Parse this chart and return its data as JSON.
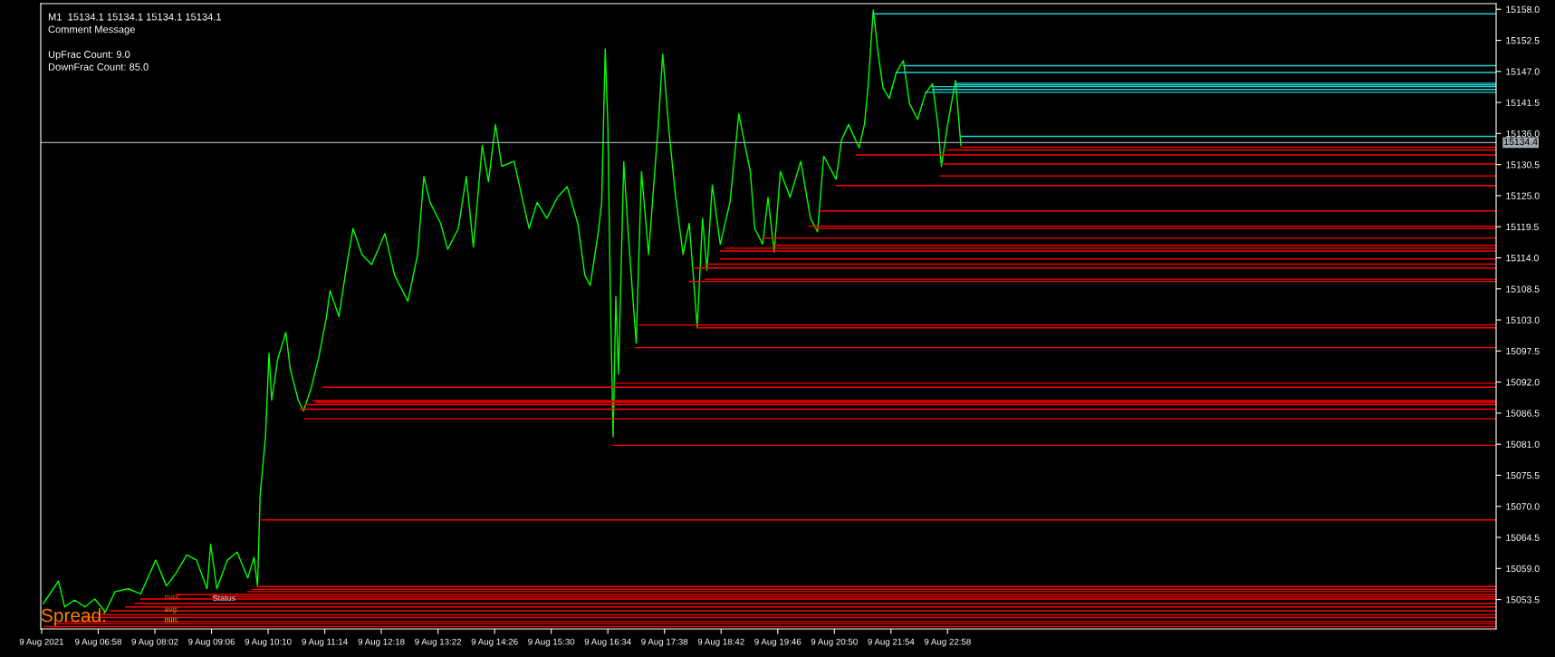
{
  "chart_data": {
    "type": "line",
    "annotations": [
      "M1  15134.1 15134.1 15134.1 15134.1",
      "Comment Message",
      "UpFrac Count: 9.0",
      "DownFrac Count: 85.0",
      "Spread:",
      "max:",
      "avg:",
      "min:",
      "Status"
    ],
    "xlim": [
      "2021-08-09T05:53",
      "2021-08-10T09:18"
    ],
    "ylim": [
      15048.3,
      15159.0
    ],
    "xticks": [
      {
        "value": "2021-08-09T05:54",
        "label": "9 Aug 2021"
      },
      {
        "value": "2021-08-09T06:58",
        "label": "9 Aug 06:58"
      },
      {
        "value": "2021-08-09T08:02",
        "label": "9 Aug 08:02"
      },
      {
        "value": "2021-08-09T09:06",
        "label": "9 Aug 09:06"
      },
      {
        "value": "2021-08-09T10:10",
        "label": "9 Aug 10:10"
      },
      {
        "value": "2021-08-09T11:14",
        "label": "9 Aug 11:14"
      },
      {
        "value": "2021-08-09T12:18",
        "label": "9 Aug 12:18"
      },
      {
        "value": "2021-08-09T13:22",
        "label": "9 Aug 13:22"
      },
      {
        "value": "2021-08-09T14:26",
        "label": "9 Aug 14:26"
      },
      {
        "value": "2021-08-09T15:30",
        "label": "9 Aug 15:30"
      },
      {
        "value": "2021-08-09T16:34",
        "label": "9 Aug 16:34"
      },
      {
        "value": "2021-08-09T17:38",
        "label": "9 Aug 17:38"
      },
      {
        "value": "2021-08-09T18:42",
        "label": "9 Aug 18:42"
      },
      {
        "value": "2021-08-09T19:46",
        "label": "9 Aug 19:46"
      },
      {
        "value": "2021-08-09T20:50",
        "label": "9 Aug 20:50"
      },
      {
        "value": "2021-08-09T21:54",
        "label": "9 Aug 21:54"
      },
      {
        "value": "2021-08-09T22:58",
        "label": "9 Aug 22:58"
      }
    ],
    "yticks": [
      15053.5,
      {
        "value": 15059,
        "label": "15059.0"
      },
      15064.5,
      {
        "value": 15070,
        "label": "15070.0"
      },
      15075.5,
      {
        "value": 15081,
        "label": "15081.0"
      },
      15086.5,
      {
        "value": 15092,
        "label": "15092.0"
      },
      15097.5,
      {
        "value": 15103,
        "label": "15103.0"
      },
      15108.5,
      {
        "value": 15114,
        "label": "15114.0"
      },
      15119.5,
      {
        "value": 15125,
        "label": "15125.0"
      },
      15130.5,
      {
        "value": 15136,
        "label": "15136.0"
      },
      15141.5,
      {
        "value": 15147,
        "label": "15147.0"
      },
      15152.5,
      {
        "value": 15158,
        "label": "15158.0"
      }
    ],
    "grid": false,
    "legend": false,
    "marker": "none",
    "line_style": "solid",
    "ref_lines": [
      {
        "axis": "y",
        "value": 15134.4,
        "label": "15134.4",
        "color": "#a0a8b0"
      }
    ],
    "series": [
      {
        "color": "#00ff00",
        "x": [
          "2021-08-09T05:56",
          "2021-08-09T06:08",
          "2021-08-09T06:13",
          "2021-08-09T06:20",
          "2021-08-09T06:31",
          "2021-08-09T06:43",
          "2021-08-09T06:54",
          "2021-08-09T07:06",
          "2021-08-09T07:17",
          "2021-08-09T07:32",
          "2021-08-09T07:46",
          "2021-08-09T08:03",
          "2021-08-09T08:15",
          "2021-08-09T08:26",
          "2021-08-09T08:38",
          "2021-08-09T08:49",
          "2021-08-09T09:01",
          "2021-08-09T09:05",
          "2021-08-09T09:12",
          "2021-08-09T09:24",
          "2021-08-09T09:35",
          "2021-08-09T09:47",
          "2021-08-09T09:54",
          "2021-08-09T09:58",
          "2021-08-09T10:01",
          "2021-08-09T10:07",
          "2021-08-09T10:11",
          "2021-08-09T10:14",
          "2021-08-09T10:21",
          "2021-08-09T10:30",
          "2021-08-09T10:35",
          "2021-08-09T10:44",
          "2021-08-09T10:50",
          "2021-08-09T10:58",
          "2021-08-09T11:07",
          "2021-08-09T11:16",
          "2021-08-09T11:20",
          "2021-08-09T11:30",
          "2021-08-09T11:39",
          "2021-08-09T11:46",
          "2021-08-09T11:56",
          "2021-08-09T12:07",
          "2021-08-09T12:22",
          "2021-08-09T12:33",
          "2021-08-09T12:48",
          "2021-08-09T12:59",
          "2021-08-09T13:06",
          "2021-08-09T13:13",
          "2021-08-09T13:25",
          "2021-08-09T13:33",
          "2021-08-09T13:45",
          "2021-08-09T13:54",
          "2021-08-09T14:02",
          "2021-08-09T14:12",
          "2021-08-09T14:19",
          "2021-08-09T14:27",
          "2021-08-09T14:34",
          "2021-08-09T14:48",
          "2021-08-09T14:57",
          "2021-08-09T15:05",
          "2021-08-09T15:14",
          "2021-08-09T15:25",
          "2021-08-09T15:37",
          "2021-08-09T15:48",
          "2021-08-09T16:00",
          "2021-08-09T16:08",
          "2021-08-09T16:14",
          "2021-08-09T16:23",
          "2021-08-09T16:27",
          "2021-08-09T16:31",
          "2021-08-09T16:34",
          "2021-08-09T16:37",
          "2021-08-09T16:40",
          "2021-08-09T16:43",
          "2021-08-09T16:46",
          "2021-08-09T16:52",
          "2021-08-09T16:57",
          "2021-08-09T17:06",
          "2021-08-09T17:12",
          "2021-08-09T17:20",
          "2021-08-09T17:31",
          "2021-08-09T17:36",
          "2021-08-09T17:43",
          "2021-08-09T17:50",
          "2021-08-09T17:59",
          "2021-08-09T18:06",
          "2021-08-09T18:15",
          "2021-08-09T18:21",
          "2021-08-09T18:26",
          "2021-08-09T18:32",
          "2021-08-09T18:41",
          "2021-08-09T18:52",
          "2021-08-09T19:02",
          "2021-08-09T19:09",
          "2021-08-09T19:15",
          "2021-08-09T19:20",
          "2021-08-09T19:29",
          "2021-08-09T19:35",
          "2021-08-09T19:42",
          "2021-08-09T19:49",
          "2021-08-09T20:00",
          "2021-08-09T20:12",
          "2021-08-09T20:23",
          "2021-08-09T20:31",
          "2021-08-09T20:38",
          "2021-08-09T20:52",
          "2021-08-09T20:58",
          "2021-08-09T21:06",
          "2021-08-09T21:18",
          "2021-08-09T21:24",
          "2021-08-09T21:28",
          "2021-08-09T21:34",
          "2021-08-09T21:40",
          "2021-08-09T21:45",
          "2021-08-09T21:52",
          "2021-08-09T22:00",
          "2021-08-09T22:08",
          "2021-08-09T22:15",
          "2021-08-09T22:24",
          "2021-08-09T22:33",
          "2021-08-09T22:41",
          "2021-08-09T22:47",
          "2021-08-09T22:51",
          "2021-08-09T22:58",
          "2021-08-09T23:07",
          "2021-08-09T23:13"
        ],
        "values": [
          15052.8,
          15055.6,
          15056.8,
          15052.2,
          15053.4,
          15052.2,
          15053.6,
          15051.3,
          15054.9,
          15055.4,
          15054.5,
          15060.5,
          15055.9,
          15058.2,
          15061.4,
          15060.5,
          15055.4,
          15063.3,
          15055.4,
          15060.5,
          15061.9,
          15057.3,
          15061.0,
          15055.9,
          15072.1,
          15082.3,
          15097.1,
          15088.8,
          15096.2,
          15100.8,
          15094.3,
          15088.8,
          15086.9,
          15090.6,
          15096.2,
          15103.6,
          15108.2,
          15103.6,
          15112.8,
          15119.2,
          15114.6,
          15112.8,
          15118.3,
          15110.9,
          15106.3,
          15114.6,
          15128.4,
          15123.8,
          15120.1,
          15115.5,
          15119.2,
          15128.4,
          15115.9,
          15133.9,
          15127.5,
          15137.6,
          15130.2,
          15131.1,
          15124.7,
          15119.2,
          15123.8,
          15121.0,
          15124.7,
          15126.6,
          15120.1,
          15110.9,
          15109.1,
          15118.3,
          15123.8,
          15151.0,
          15137.6,
          15105.4,
          15082.3,
          15107.2,
          15093.4,
          15131.0,
          15118.3,
          15098.9,
          15129.3,
          15114.6,
          15137.6,
          15150.1,
          15136.7,
          15125.6,
          15114.6,
          15120.1,
          15101.7,
          15121.0,
          15111.8,
          15126.9,
          15116.4,
          15123.8,
          15139.5,
          15133.9,
          15129.3,
          15119.2,
          15116.4,
          15124.7,
          15115.0,
          15129.3,
          15124.7,
          15131.1,
          15121.0,
          15118.6,
          15132.0,
          15127.9,
          15134.8,
          15137.6,
          15133.5,
          15137.6,
          15144.1,
          15157.9,
          15149.6,
          15144.1,
          15142.2,
          15146.8,
          15148.9,
          15141.3,
          15138.5,
          15143.1,
          15144.8,
          15137.6,
          15130.2,
          15137.6,
          15145.4,
          15133.9
        ]
      },
      {
        "color": "#20d0d0",
        "x": [
          "2021-08-09T21:34",
          "2021-08-10T09:18"
        ],
        "values": [
          15157.2,
          15157.2
        ]
      },
      {
        "color": "#20d0d0",
        "x": [
          "2021-08-09T22:08",
          "2021-08-10T09:18"
        ],
        "values": [
          15148.0,
          15148.0
        ]
      },
      {
        "color": "#20d0d0",
        "x": [
          "2021-08-09T22:00",
          "2021-08-10T09:18"
        ],
        "values": [
          15146.8,
          15146.8
        ]
      },
      {
        "color": "#20d0d0",
        "x": [
          "2021-08-09T23:07",
          "2021-08-10T09:18"
        ],
        "values": [
          15144.9,
          15144.9
        ]
      },
      {
        "color": "#20d0d0",
        "x": [
          "2021-08-09T23:07",
          "2021-08-10T09:18"
        ],
        "values": [
          15144.6,
          15144.6
        ]
      },
      {
        "color": "#20d0d0",
        "x": [
          "2021-08-09T22:41",
          "2021-08-10T09:18"
        ],
        "values": [
          15144.3,
          15144.3
        ]
      },
      {
        "color": "#20d0d0",
        "x": [
          "2021-08-09T22:41",
          "2021-08-10T09:18"
        ],
        "values": [
          15143.8,
          15143.8
        ]
      },
      {
        "color": "#20d0d0",
        "x": [
          "2021-08-09T22:33",
          "2021-08-10T09:18"
        ],
        "values": [
          15143.3,
          15143.3
        ]
      },
      {
        "color": "#20d0d0",
        "x": [
          "2021-08-09T23:13",
          "2021-08-10T09:18"
        ],
        "values": [
          15135.5,
          15135.5
        ]
      },
      {
        "color": "#ff0000",
        "x": [
          "2021-08-09T23:13",
          "2021-08-10T09:18"
        ],
        "values": [
          15133.6,
          15133.6
        ]
      },
      {
        "color": "#ff0000",
        "x": [
          "2021-08-09T22:58",
          "2021-08-10T09:18"
        ],
        "values": [
          15133.1,
          15133.1
        ]
      },
      {
        "color": "#ff0000",
        "x": [
          "2021-08-09T21:15",
          "2021-08-10T09:18"
        ],
        "values": [
          15132.2,
          15132.2
        ]
      },
      {
        "color": "#ff0000",
        "x": [
          "2021-08-09T22:54",
          "2021-08-10T09:18"
        ],
        "values": [
          15130.6,
          15130.6
        ]
      },
      {
        "color": "#ff0000",
        "x": [
          "2021-08-09T22:50",
          "2021-08-10T09:18"
        ],
        "values": [
          15128.5,
          15128.5
        ]
      },
      {
        "color": "#ff0000",
        "x": [
          "2021-08-09T20:52",
          "2021-08-10T09:18"
        ],
        "values": [
          15126.8,
          15126.8
        ]
      },
      {
        "color": "#ff0000",
        "x": [
          "2021-08-09T20:35",
          "2021-08-10T09:18"
        ],
        "values": [
          15122.3,
          15122.3
        ]
      },
      {
        "color": "#ff0000",
        "x": [
          "2021-08-09T20:21",
          "2021-08-10T09:18"
        ],
        "values": [
          15119.6,
          15119.6
        ]
      },
      {
        "color": "#ff0000",
        "x": [
          "2021-08-09T20:29",
          "2021-08-10T09:18"
        ],
        "values": [
          15119.2,
          15119.2
        ]
      },
      {
        "color": "#ff0000",
        "x": [
          "2021-08-09T19:29",
          "2021-08-10T09:18"
        ],
        "values": [
          15117.5,
          15117.5
        ]
      },
      {
        "color": "#ff0000",
        "x": [
          "2021-08-09T19:41",
          "2021-08-10T09:18"
        ],
        "values": [
          15116.2,
          15116.2
        ]
      },
      {
        "color": "#ff0000",
        "x": [
          "2021-08-09T18:47",
          "2021-08-10T09:18"
        ],
        "values": [
          15115.7,
          15115.7
        ]
      },
      {
        "color": "#ff0000",
        "x": [
          "2021-08-09T18:41",
          "2021-08-10T09:18"
        ],
        "values": [
          15115.2,
          15115.2
        ]
      },
      {
        "color": "#ff0000",
        "x": [
          "2021-08-09T18:41",
          "2021-08-10T09:18"
        ],
        "values": [
          15113.8,
          15113.8
        ]
      },
      {
        "color": "#ff0000",
        "x": [
          "2021-08-09T18:24",
          "2021-08-10T09:18"
        ],
        "values": [
          15112.9,
          15112.9
        ]
      },
      {
        "color": "#ff0000",
        "x": [
          "2021-08-09T18:12",
          "2021-08-10T09:18"
        ],
        "values": [
          15112.2,
          15112.2
        ]
      },
      {
        "color": "#ff0000",
        "x": [
          "2021-08-09T18:24",
          "2021-08-10T09:18"
        ],
        "values": [
          15110.2,
          15110.2
        ]
      },
      {
        "color": "#ff0000",
        "x": [
          "2021-08-09T18:06",
          "2021-08-10T09:18"
        ],
        "values": [
          15109.8,
          15109.8
        ]
      },
      {
        "color": "#ff0000",
        "x": [
          "2021-08-09T17:09",
          "2021-08-10T09:18"
        ],
        "values": [
          15102.1,
          15102.1
        ]
      },
      {
        "color": "#ff0000",
        "x": [
          "2021-08-09T18:15",
          "2021-08-10T09:18"
        ],
        "values": [
          15101.6,
          15101.6
        ]
      },
      {
        "color": "#ff0000",
        "x": [
          "2021-08-09T17:05",
          "2021-08-10T09:18"
        ],
        "values": [
          15098.1,
          15098.1
        ]
      },
      {
        "color": "#ff0000",
        "x": [
          "2021-08-09T16:43",
          "2021-08-10T09:18"
        ],
        "values": [
          15091.8,
          15091.8
        ]
      },
      {
        "color": "#ff0000",
        "x": [
          "2021-08-09T11:12",
          "2021-08-10T09:18"
        ],
        "values": [
          15091.1,
          15091.1
        ]
      },
      {
        "color": "#ff0000",
        "x": [
          "2021-08-09T11:01",
          "2021-08-10T09:18"
        ],
        "values": [
          15088.7,
          15088.7
        ]
      },
      {
        "color": "#ff0000",
        "x": [
          "2021-08-09T11:04",
          "2021-08-10T09:18"
        ],
        "values": [
          15088.4,
          15088.4
        ]
      },
      {
        "color": "#ff0000",
        "x": [
          "2021-08-09T10:52",
          "2021-08-10T09:18"
        ],
        "values": [
          15088.0,
          15088.0
        ]
      },
      {
        "color": "#ff0000",
        "x": [
          "2021-08-09T10:46",
          "2021-08-10T09:18"
        ],
        "values": [
          15087.2,
          15087.2
        ]
      },
      {
        "color": "#ff0000",
        "x": [
          "2021-08-09T10:51",
          "2021-08-10T09:18"
        ],
        "values": [
          15085.5,
          15085.5
        ]
      },
      {
        "color": "#ff0000",
        "x": [
          "2021-08-09T16:40",
          "2021-08-10T09:18"
        ],
        "values": [
          15080.8,
          15080.8
        ]
      },
      {
        "color": "#ff0000",
        "x": [
          "2021-08-09T10:03",
          "2021-08-10T09:18"
        ],
        "values": [
          15067.6,
          15067.6
        ]
      },
      {
        "color": "#ff0000",
        "x": [
          "2021-08-09T09:58",
          "2021-08-10T09:18"
        ],
        "values": [
          15055.8,
          15055.8
        ]
      },
      {
        "color": "#ff0000",
        "x": [
          "2021-08-09T09:52",
          "2021-08-10T09:18"
        ],
        "values": [
          15055.3,
          15055.3
        ]
      },
      {
        "color": "#ff0000",
        "x": [
          "2021-08-09T09:47",
          "2021-08-10T09:18"
        ],
        "values": [
          15054.9,
          15054.9
        ]
      },
      {
        "color": "#ff0000",
        "x": [
          "2021-08-09T08:26",
          "2021-08-10T09:18"
        ],
        "values": [
          15054.4,
          15054.4
        ]
      },
      {
        "color": "#ff0000",
        "x": [
          "2021-08-09T09:07",
          "2021-08-10T09:18"
        ],
        "values": [
          15054.0,
          15054.0
        ]
      },
      {
        "color": "#ff0000",
        "x": [
          "2021-08-09T07:46",
          "2021-08-10T09:18"
        ],
        "values": [
          15053.6,
          15053.6
        ]
      },
      {
        "color": "#ff0000",
        "x": [
          "2021-08-09T07:40",
          "2021-08-10T09:18"
        ],
        "values": [
          15052.8,
          15052.8
        ]
      },
      {
        "color": "#ff0000",
        "x": [
          "2021-08-09T07:29",
          "2021-08-10T09:18"
        ],
        "values": [
          15052.2,
          15052.2
        ]
      },
      {
        "color": "#ff0000",
        "x": [
          "2021-08-09T07:12",
          "2021-08-10T09:18"
        ],
        "values": [
          15051.5,
          15051.5
        ]
      },
      {
        "color": "#ff0000",
        "x": [
          "2021-08-09T07:00",
          "2021-08-10T09:18"
        ],
        "values": [
          15050.8,
          15050.8
        ]
      },
      {
        "color": "#ff0000",
        "x": [
          "2021-08-09T06:43",
          "2021-08-10T09:18"
        ],
        "values": [
          15050.3,
          15050.3
        ]
      },
      {
        "color": "#ff0000",
        "x": [
          "2021-08-09T06:20",
          "2021-08-10T09:18"
        ],
        "values": [
          15049.6,
          15049.6
        ]
      },
      {
        "color": "#ff0000",
        "x": [
          "2021-08-09T06:08",
          "2021-08-10T09:18"
        ],
        "values": [
          15049.2,
          15049.2
        ]
      },
      {
        "color": "#ff0000",
        "x": [
          "2021-08-09T05:57",
          "2021-08-10T09:18"
        ],
        "values": [
          15048.7,
          15048.7
        ]
      }
    ]
  }
}
